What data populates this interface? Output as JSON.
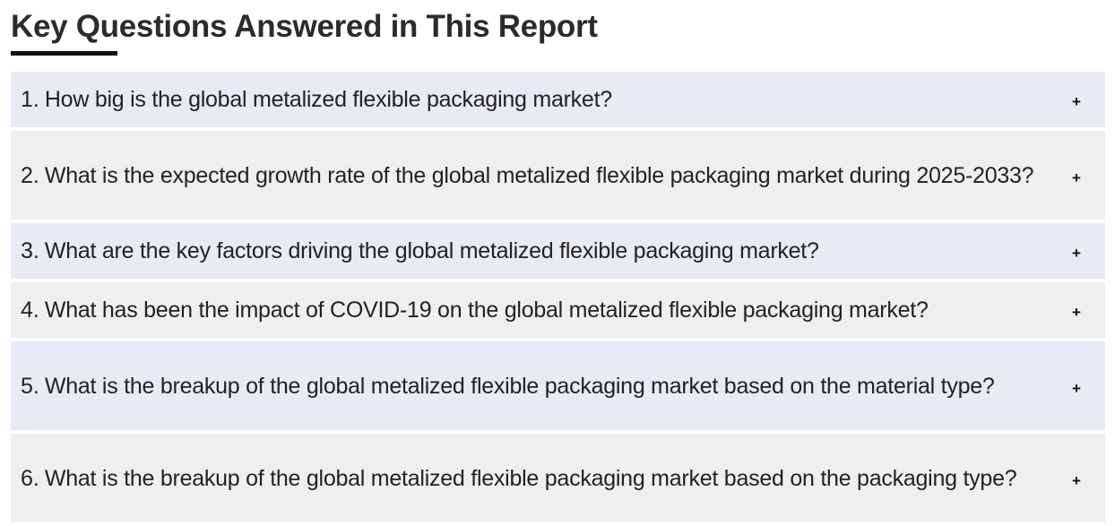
{
  "page": {
    "title": "Key Questions Answered in This Report"
  },
  "faq": {
    "toggle_symbol": "+",
    "items": [
      {
        "number": "1.",
        "question": "How big is the global metalized flexible packaging market?"
      },
      {
        "number": "2.",
        "question": "What is the expected growth rate of the global metalized flexible packaging market during 2025-2033?"
      },
      {
        "number": "3.",
        "question": "What are the key factors driving the global metalized flexible packaging market?"
      },
      {
        "number": "4.",
        "question": "What has been the impact of COVID-19 on the global metalized flexible packaging market?"
      },
      {
        "number": "5.",
        "question": "What is the breakup of the global metalized flexible packaging market based on the material type?"
      },
      {
        "number": "6.",
        "question": "What is the breakup of the global metalized flexible packaging market based on the packaging type?"
      }
    ]
  },
  "colors": {
    "row_tint_a": "#e8eaf5",
    "row_tint_b": "#efefef",
    "title_text": "#2b2b2b",
    "underline": "#111111"
  }
}
